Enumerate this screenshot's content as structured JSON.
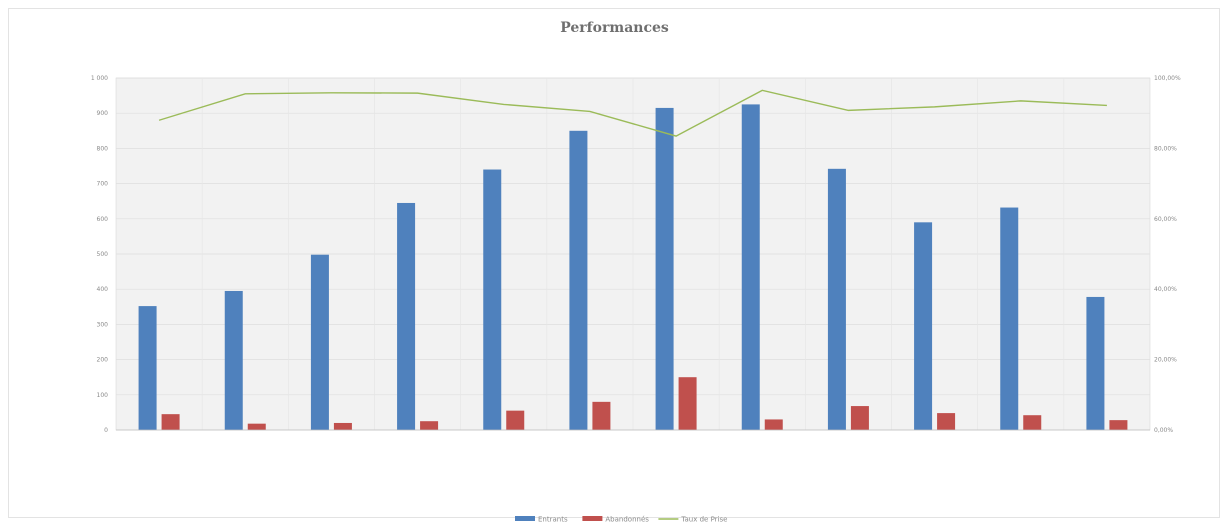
{
  "chart_data": {
    "type": "bar",
    "title": "Performances",
    "categories": [
      "",
      "",
      "",
      "",
      "",
      "",
      "",
      "",
      "",
      "",
      "",
      ""
    ],
    "y_left": {
      "min": 0,
      "max": 1000,
      "step": 100,
      "labels": [
        "0",
        "100",
        "200",
        "300",
        "400",
        "500",
        "600",
        "700",
        "800",
        "900",
        "1 000"
      ]
    },
    "y_right": {
      "min": 0,
      "max": 1,
      "step": 0.2,
      "labels": [
        "0,00%",
        "20,00%",
        "40,00%",
        "60,00%",
        "80,00%",
        "100,00%"
      ]
    },
    "series": [
      {
        "name": "Entrants",
        "type": "bar",
        "axis": "left",
        "color": "#4f81bd",
        "values": [
          352,
          395,
          498,
          645,
          740,
          850,
          915,
          925,
          742,
          590,
          632,
          378
        ]
      },
      {
        "name": "Abandonnés",
        "type": "bar",
        "axis": "left",
        "color": "#c0504d",
        "values": [
          45,
          18,
          20,
          25,
          55,
          80,
          150,
          30,
          68,
          48,
          42,
          28
        ]
      },
      {
        "name": "Taux de Prise",
        "type": "line",
        "axis": "right",
        "color": "#9bbb59",
        "values": [
          0.88,
          0.955,
          0.958,
          0.957,
          0.925,
          0.905,
          0.835,
          0.965,
          0.908,
          0.918,
          0.935,
          0.922
        ]
      }
    ],
    "grid": true,
    "legend_position": "bottom"
  }
}
